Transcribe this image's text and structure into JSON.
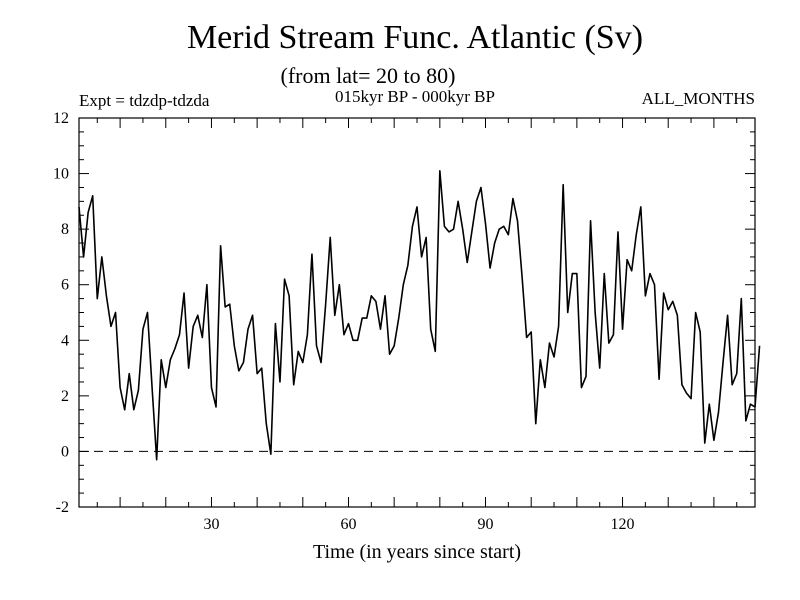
{
  "chart_data": {
    "type": "line",
    "title": "Merid Stream Func. Atlantic (Sv)",
    "subtitle": "(from lat= 20 to 80)",
    "experiment_label": "Expt = tdzdp-tdzda",
    "period_label": "015kyr BP - 000kyr BP",
    "months_label": "ALL_MONTHS",
    "xlabel": "Time (in years since start)",
    "ylabel": "",
    "xlim": [
      1,
      149
    ],
    "ylim": [
      -2,
      12
    ],
    "x_ticks": [
      30,
      60,
      90,
      120
    ],
    "y_ticks": [
      -2,
      0,
      2,
      4,
      6,
      8,
      10,
      12
    ],
    "x_tick_labels": [
      "30",
      "60",
      "90",
      "120"
    ],
    "y_tick_labels": [
      "-2",
      "0",
      "2",
      "4",
      "6",
      "8",
      "10",
      "12"
    ],
    "reference_line": {
      "y": 0,
      "style": "dashed"
    },
    "x_start": 1,
    "x_step": 1,
    "series": [
      {
        "name": "Merid Stream Func.",
        "values": [
          8.8,
          7.0,
          8.6,
          9.2,
          5.5,
          7.0,
          5.6,
          4.5,
          5.0,
          2.3,
          1.5,
          2.8,
          1.5,
          2.2,
          4.4,
          5.0,
          2.3,
          -0.3,
          3.3,
          2.3,
          3.3,
          3.7,
          4.2,
          5.7,
          3.0,
          4.5,
          4.9,
          4.1,
          6.0,
          2.3,
          1.6,
          7.4,
          5.2,
          5.3,
          3.8,
          2.9,
          3.2,
          4.4,
          4.9,
          2.8,
          3.0,
          1.0,
          -0.1,
          4.6,
          2.5,
          6.2,
          5.6,
          2.4,
          3.6,
          3.2,
          4.2,
          7.1,
          3.8,
          3.2,
          5.3,
          7.7,
          4.9,
          6.0,
          4.2,
          4.6,
          4.0,
          4.0,
          4.8,
          4.8,
          5.6,
          5.4,
          4.4,
          5.6,
          3.5,
          3.8,
          4.8,
          6.0,
          6.7,
          8.1,
          8.8,
          7.0,
          7.7,
          4.4,
          3.6,
          10.1,
          8.1,
          7.9,
          8.0,
          9.0,
          8.0,
          6.8,
          7.9,
          9.0,
          9.5,
          8.2,
          6.6,
          7.5,
          8.0,
          8.1,
          7.8,
          9.1,
          8.3,
          6.3,
          4.1,
          4.3,
          1.0,
          3.3,
          2.3,
          3.9,
          3.4,
          4.5,
          9.6,
          5.0,
          6.4,
          6.4,
          2.3,
          2.7,
          8.3,
          5.0,
          3.0,
          6.4,
          3.9,
          4.2,
          7.9,
          4.4,
          6.9,
          6.5,
          7.8,
          8.8,
          5.6,
          6.4,
          6.0,
          2.6,
          5.7,
          5.1,
          5.4,
          4.9,
          2.4,
          2.1,
          1.9,
          5.0,
          4.3,
          0.3,
          1.7,
          0.4,
          1.4,
          3.2,
          4.9,
          2.4,
          2.8,
          5.5,
          1.1,
          1.7,
          1.6,
          3.8
        ]
      }
    ]
  }
}
